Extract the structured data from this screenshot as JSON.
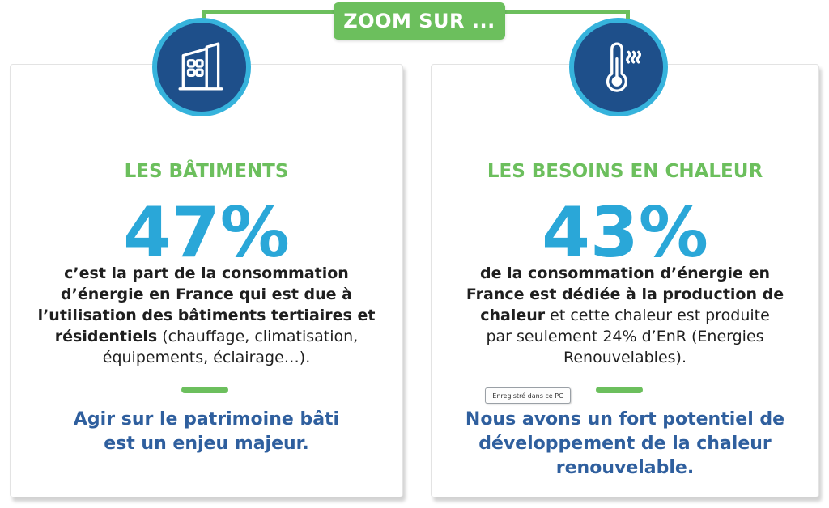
{
  "header": {
    "zoom_label": "ZOOM SUR ..."
  },
  "left_card": {
    "icon": "building-icon",
    "title": "LES BÂTIMENTS",
    "stat": "47%",
    "desc_bold_1": "c’est la part de la consommation",
    "desc_bold_2": "d’énergie en France qui est due à",
    "desc_bold_3": "l’utilisation des bâtiments tertiaires et",
    "desc_bold_4": "résidentiels",
    "desc_normal_4": " (chauffage, climatisation,",
    "desc_normal_5": "équipements, éclairage…).",
    "conclusion_1": "Agir sur le patrimoine bâti",
    "conclusion_2": "est un enjeu majeur."
  },
  "right_card": {
    "icon": "thermometer-icon",
    "title": "LES BESOINS EN CHALEUR",
    "stat": "43%",
    "desc_bold_1": "de la consommation d’énergie en",
    "desc_bold_2": "France est dédiée à la production de",
    "desc_bold_3": "chaleur",
    "desc_normal_3": " et cette chaleur est produite",
    "desc_normal_4": "par seulement 24% d’EnR (Energies",
    "desc_normal_5": "Renouvelables).",
    "conclusion_1": "Nous avons un fort potentiel de",
    "conclusion_2": "développement de la chaleur",
    "conclusion_3": "renouvelable."
  },
  "tooltip": {
    "text": "Enregistré dans ce PC"
  },
  "colors": {
    "green": "#6cbf5d",
    "light_blue": "#2aa7d8",
    "dark_blue": "#1e4f8a",
    "conclusion_blue": "#2f5f9e"
  }
}
